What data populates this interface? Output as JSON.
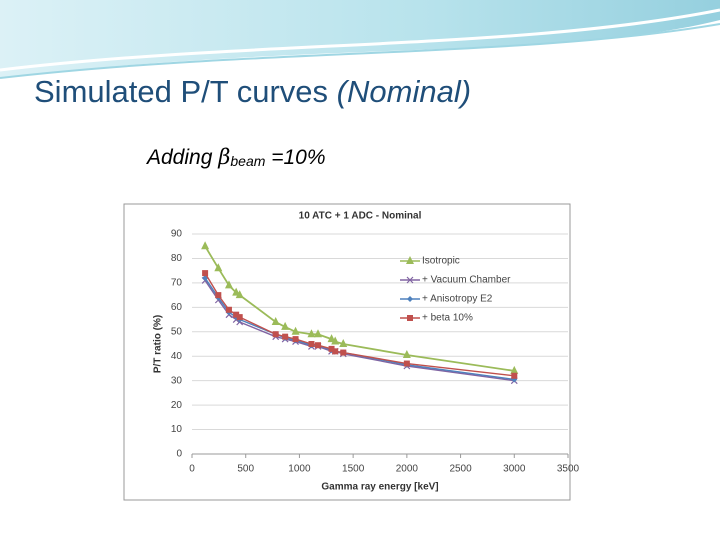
{
  "slide": {
    "title": "Simulated P/T curves ",
    "title_emphasis": "(Nominal)",
    "subtitle_prefix": "Adding ",
    "subtitle_symbol": "β",
    "subtitle_subscript": "beam",
    "subtitle_suffix": " =10%"
  },
  "chart_data": {
    "type": "line",
    "title": "10 ATC + 1 ADC - Nominal",
    "x_label": "Gamma ray energy [keV]",
    "y_label": "P/T ratio (%)",
    "x": [
      122,
      245,
      344,
      411,
      444,
      779,
      867,
      964,
      1112,
      1173,
      1299,
      1333,
      1408,
      2000,
      3000
    ],
    "series": [
      {
        "name": "Isotropic",
        "color": "#9bbb59",
        "marker": "triangle",
        "values": [
          85,
          76,
          69,
          66,
          65,
          54,
          52,
          50,
          49,
          49,
          47,
          46,
          45,
          40.5,
          34
        ]
      },
      {
        "name": "+ Vacuum Chamber",
        "color": "#8064a2",
        "marker": "cross",
        "values": [
          71,
          63,
          57,
          55,
          54,
          48,
          47,
          46,
          44,
          44,
          42,
          42,
          41,
          36,
          30
        ]
      },
      {
        "name": "+ Anisotropy E2",
        "color": "#4f81bd",
        "marker": "diamond",
        "values": [
          72,
          64,
          58,
          56,
          55,
          49,
          47.5,
          46.5,
          44.5,
          44.5,
          42.5,
          42,
          41.5,
          36.5,
          30.5
        ]
      },
      {
        "name": "+ beta 10%",
        "color": "#c0504d",
        "marker": "square",
        "values": [
          74,
          65,
          59,
          57,
          56,
          49,
          48,
          47,
          45,
          44.5,
          43,
          42,
          41.5,
          37,
          32
        ]
      }
    ],
    "xlim": [
      0,
      3500
    ],
    "xticks": [
      0,
      500,
      1000,
      1500,
      2000,
      2500,
      3000,
      3500
    ],
    "ylim": [
      0,
      90
    ],
    "yticks": [
      0,
      10,
      20,
      30,
      40,
      50,
      60,
      70,
      80,
      90
    ],
    "grid": true,
    "legend": "upper right"
  }
}
